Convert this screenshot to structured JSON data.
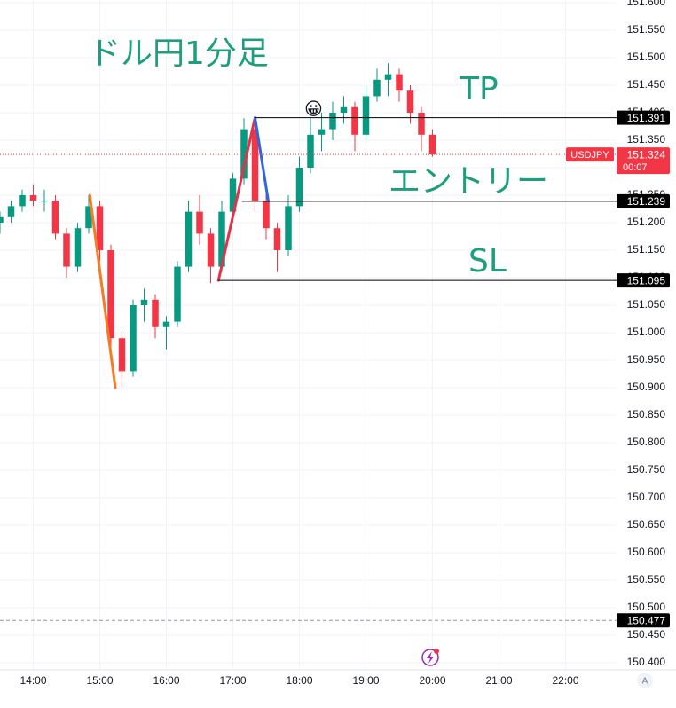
{
  "chart_data": {
    "type": "candlestick",
    "title": "ドル円1分足",
    "tp_label": "TP",
    "entry_label": "エントリー",
    "sl_label": "SL",
    "emoji": "😀",
    "symbol": "USDJPY",
    "countdown": "00:07",
    "up_color": "#089981",
    "down_color": "#f23645",
    "grid": true,
    "x": [
      "13:30",
      "13:40",
      "13:50",
      "14:00",
      "14:10",
      "14:20",
      "14:30",
      "14:40",
      "14:50",
      "15:00",
      "15:10",
      "15:20",
      "15:30",
      "15:40",
      "15:50",
      "16:00",
      "16:10",
      "16:20",
      "16:30",
      "16:40",
      "16:50",
      "17:00",
      "17:10",
      "17:20",
      "17:30",
      "17:40",
      "17:50",
      "18:00",
      "18:10",
      "18:20",
      "18:30",
      "18:40",
      "18:50",
      "19:00",
      "19:10",
      "19:20",
      "19:30",
      "19:40",
      "19:50",
      "20:00"
    ],
    "open": [
      151.2,
      151.21,
      151.23,
      151.25,
      151.24,
      151.24,
      151.18,
      151.12,
      151.19,
      151.23,
      151.15,
      150.99,
      150.93,
      151.05,
      151.06,
      151.01,
      151.02,
      151.12,
      151.22,
      151.18,
      151.12,
      151.22,
      151.28,
      151.37,
      151.24,
      151.19,
      151.15,
      151.23,
      151.3,
      151.36,
      151.37,
      151.4,
      151.41,
      151.36,
      151.43,
      151.46,
      151.47,
      151.44,
      151.4,
      151.36
    ],
    "high": [
      151.22,
      151.24,
      151.26,
      151.27,
      151.26,
      151.25,
      151.19,
      151.2,
      151.25,
      151.24,
      151.16,
      151.0,
      151.06,
      151.08,
      151.07,
      151.03,
      151.13,
      151.24,
      151.25,
      151.19,
      151.24,
      151.29,
      151.39,
      151.39,
      151.26,
      151.2,
      151.25,
      151.32,
      151.39,
      151.4,
      151.42,
      151.43,
      151.42,
      151.45,
      151.48,
      151.49,
      151.48,
      151.45,
      151.41,
      151.37
    ],
    "low": [
      151.18,
      151.2,
      151.22,
      151.23,
      151.22,
      151.17,
      151.1,
      151.11,
      151.18,
      151.13,
      150.97,
      150.9,
      150.92,
      151.02,
      150.99,
      150.97,
      151.01,
      151.11,
      151.16,
      151.09,
      151.11,
      151.2,
      151.27,
      151.22,
      151.17,
      151.11,
      151.14,
      151.22,
      151.29,
      151.33,
      151.35,
      151.38,
      151.33,
      151.35,
      151.42,
      151.43,
      151.42,
      151.38,
      151.33,
      151.32
    ],
    "close": [
      151.21,
      151.23,
      151.25,
      151.24,
      151.24,
      151.18,
      151.12,
      151.19,
      151.23,
      151.15,
      150.99,
      150.93,
      151.05,
      151.06,
      151.01,
      151.02,
      151.12,
      151.22,
      151.18,
      151.12,
      151.22,
      151.28,
      151.37,
      151.24,
      151.19,
      151.15,
      151.23,
      151.3,
      151.36,
      151.37,
      151.4,
      151.41,
      151.36,
      151.43,
      151.46,
      151.47,
      151.44,
      151.4,
      151.36,
      151.324
    ],
    "xlim": [
      "13:30",
      "22:50"
    ],
    "xticks": [
      "14:00",
      "15:00",
      "16:00",
      "17:00",
      "18:00",
      "19:00",
      "20:00",
      "21:00",
      "22:00"
    ],
    "ylim": [
      150.4,
      151.6
    ],
    "yticks": [
      {
        "value": 150.4,
        "label": "150.400"
      },
      {
        "value": 150.45,
        "label": "150.450"
      },
      {
        "value": 150.5,
        "label": "150.500"
      },
      {
        "value": 150.55,
        "label": "150.550"
      },
      {
        "value": 150.6,
        "label": "150.600"
      },
      {
        "value": 150.65,
        "label": "150.650"
      },
      {
        "value": 150.7,
        "label": "150.700"
      },
      {
        "value": 150.75,
        "label": "150.750"
      },
      {
        "value": 150.8,
        "label": "150.800"
      },
      {
        "value": 150.85,
        "label": "150.850"
      },
      {
        "value": 150.9,
        "label": "150.900"
      },
      {
        "value": 150.95,
        "label": "150.950"
      },
      {
        "value": 151.0,
        "label": "151.000"
      },
      {
        "value": 151.05,
        "label": "151.050"
      },
      {
        "value": 151.1,
        "label": "151.100"
      },
      {
        "value": 151.15,
        "label": "151.150"
      },
      {
        "value": 151.2,
        "label": "151.200"
      },
      {
        "value": 151.25,
        "label": "151.250"
      },
      {
        "value": 151.3,
        "label": "151.300"
      },
      {
        "value": 151.35,
        "label": "151.350"
      },
      {
        "value": 151.4,
        "label": "151.400"
      },
      {
        "value": 151.45,
        "label": "151.450"
      },
      {
        "value": 151.5,
        "label": "151.500"
      },
      {
        "value": 151.55,
        "label": "151.550"
      },
      {
        "value": 151.6,
        "label": "151.600"
      }
    ],
    "price_lines": [
      {
        "value": 151.391,
        "start": "17:20"
      },
      {
        "value": 151.239,
        "start": "17:08"
      },
      {
        "value": 151.095,
        "start": "16:47"
      }
    ],
    "last_price": 151.324,
    "alert_price": 150.477,
    "drawings": [
      {
        "color": "#f57c24",
        "x": [
          "14:51",
          "15:14"
        ],
        "y": [
          151.25,
          150.9
        ]
      },
      {
        "color": "#e0324a",
        "x": [
          "16:47",
          "17:20"
        ],
        "y": [
          151.095,
          151.391
        ]
      },
      {
        "color": "#2f66e0",
        "x": [
          "17:20",
          "17:32"
        ],
        "y": [
          151.391,
          151.239
        ]
      }
    ]
  }
}
